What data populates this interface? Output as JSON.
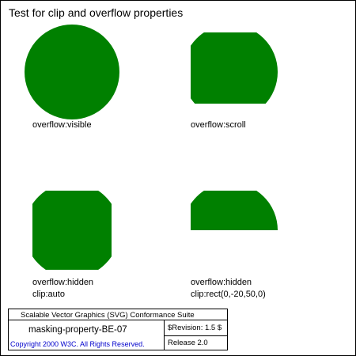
{
  "document": {
    "title": "Test for clip and overflow properties",
    "colors": {
      "shape_fill": "#008000",
      "frame": "#000000",
      "copyright_link": "#0000cc"
    }
  },
  "cases": [
    {
      "id": "visible",
      "label_lines": [
        "overflow:visible"
      ]
    },
    {
      "id": "scroll",
      "label_lines": [
        "overflow:scroll"
      ]
    },
    {
      "id": "hidden-auto",
      "label_lines": [
        "overflow:hidden",
        "clip:auto"
      ]
    },
    {
      "id": "hidden-rect",
      "label_lines": [
        "overflow:hidden",
        "clip:rect(0,-20,50,0)"
      ]
    }
  ],
  "legend": {
    "suite": "Scalable Vector Graphics (SVG) Conformance Suite",
    "test_id": "masking-property-BE-07",
    "revision": "$Revision: 1.5 $",
    "copyright": "Copyright 2000 W3C. All Rights Reserved.",
    "release": "Release 2.0"
  }
}
